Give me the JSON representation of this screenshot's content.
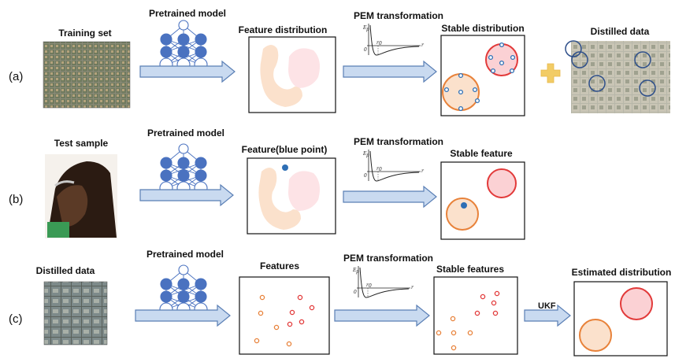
{
  "rows": [
    {
      "label": "(a)",
      "input_title": "Training set",
      "model_title": "Pretrained model",
      "feature_title": "Feature distribution",
      "transform_title": "PEM transformation",
      "stable_title": "Stable distribution",
      "output_title": "Distilled data"
    },
    {
      "label": "(b)",
      "input_title": "Test sample",
      "model_title": "Pretrained model",
      "feature_title": "Feature(blue point)",
      "transform_title": "PEM transformation",
      "stable_title": "Stable feature"
    },
    {
      "label": "(c)",
      "input_title": "Distilled data",
      "model_title": "Pretrained model",
      "feature_title": "Features",
      "transform_title": "PEM transformation",
      "stable_title": "Stable features",
      "ukf_label": "UKF",
      "output_title": "Estimated distribution"
    }
  ],
  "potential_plot": {
    "y_label": "E",
    "y_sub": "p",
    "x_label": "r",
    "origin": "0",
    "r0_label": "r",
    "r0_sub": "0"
  },
  "colors": {
    "arrow_fill": "#c9daf0",
    "arrow_stroke": "#5a7fb5",
    "blob_orange": "#fbe1cc",
    "blob_pink": "#fde3e6",
    "circle_orange": "#e8823a",
    "circle_red": "#e23a3a",
    "point_blue": "#2e6fb5",
    "network": "#4a72c0",
    "plus": "#f2cc66"
  }
}
